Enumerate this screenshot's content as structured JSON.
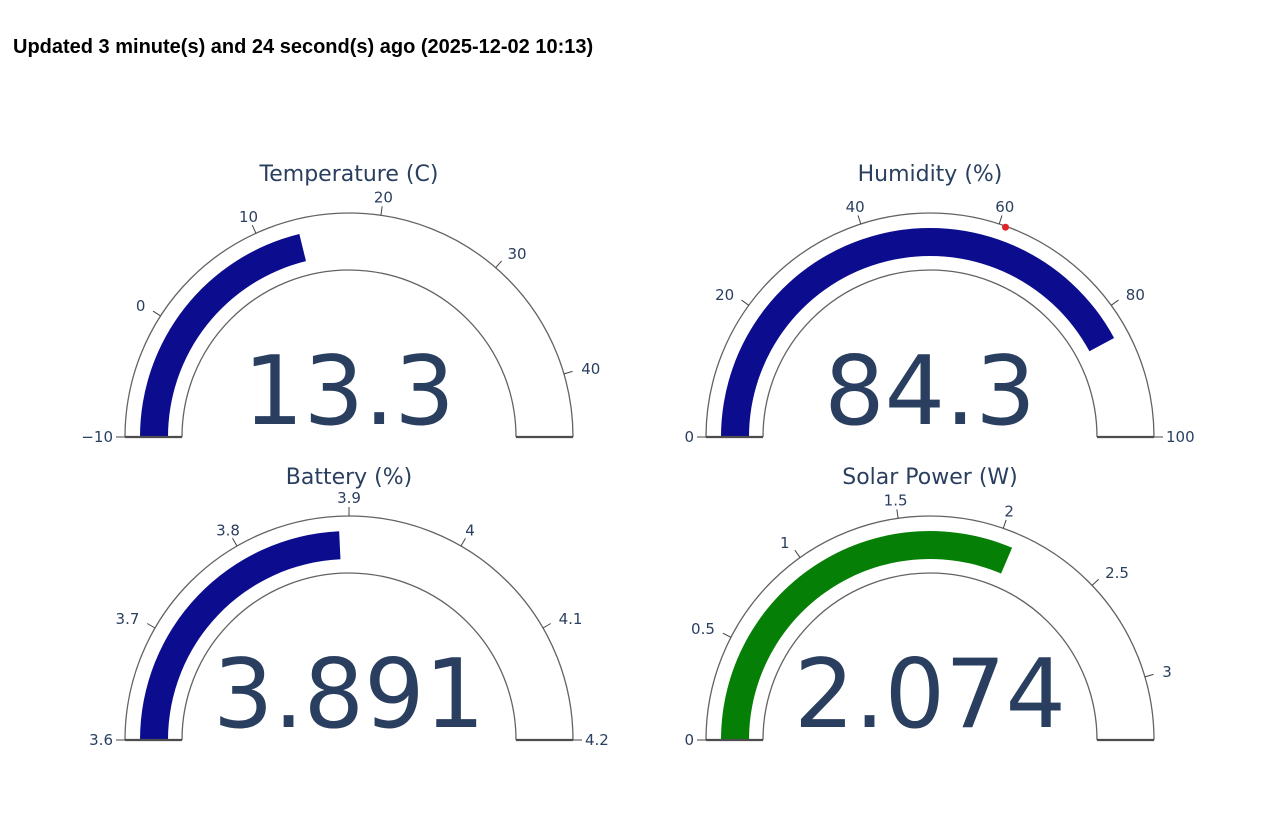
{
  "header": {
    "text": "Updated 3 minute(s) and 24 second(s) ago (2025-12-02 10:13)"
  },
  "colors": {
    "text": "#2a3f5f",
    "arc_outline": "#636363",
    "baseline": "#4d4d4d",
    "tick": "#444444",
    "bar_blue": "#0c0c8f",
    "bar_green": "#067f06",
    "threshold_red": "#e02428",
    "header_text": "#000000",
    "background": "#ffffff"
  },
  "chart_data": [
    {
      "type": "gauge",
      "title": "Temperature (C)",
      "value": 13.3,
      "value_display": "13.3",
      "axis_range": [
        -10,
        45
      ],
      "tick_values": [
        -10,
        0,
        10,
        20,
        30,
        40
      ],
      "tick_labels": [
        "−10",
        "0",
        "10",
        "20",
        "30",
        "40"
      ],
      "bar_color": "#0c0c8f"
    },
    {
      "type": "gauge",
      "title": "Humidity (%)",
      "value": 84.3,
      "value_display": "84.3",
      "axis_range": [
        0,
        100
      ],
      "tick_values": [
        0,
        20,
        40,
        60,
        80,
        100
      ],
      "tick_labels": [
        "0",
        "20",
        "40",
        "60",
        "80",
        "100"
      ],
      "bar_color": "#0c0c8f",
      "threshold": {
        "value": 61,
        "color": "#e02428"
      }
    },
    {
      "type": "gauge",
      "title": "Battery (%)",
      "value": 3.891,
      "value_display": "3.891",
      "axis_range": [
        3.6,
        4.2
      ],
      "tick_values": [
        3.6,
        3.7,
        3.8,
        3.9,
        4,
        4.1,
        4.2
      ],
      "tick_labels": [
        "3.6",
        "3.7",
        "3.8",
        "3.9",
        "4",
        "4.1",
        "4.2"
      ],
      "bar_color": "#0c0c8f"
    },
    {
      "type": "gauge",
      "title": "Solar Power (W)",
      "value": 2.074,
      "value_display": "2.074",
      "axis_range": [
        0,
        3.3
      ],
      "tick_values": [
        0,
        0.5,
        1,
        1.5,
        2,
        2.5,
        3
      ],
      "tick_labels": [
        "0",
        "0.5",
        "1",
        "1.5",
        "2",
        "2.5",
        "3"
      ],
      "bar_color": "#067f06"
    }
  ]
}
